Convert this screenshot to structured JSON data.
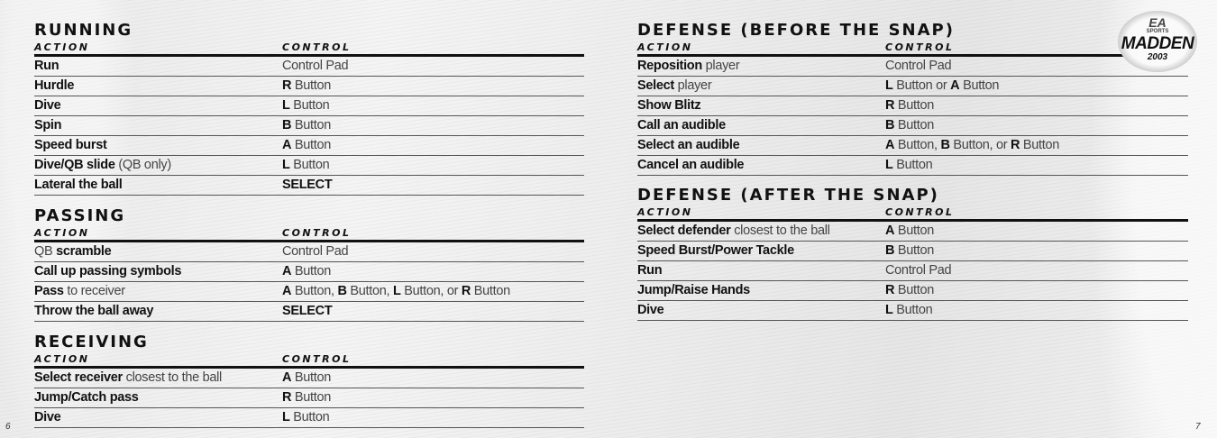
{
  "left_page": {
    "page_number": "6",
    "sections": [
      {
        "title": "RUNNING",
        "header": {
          "action": "ACTION",
          "control": "CONTROL"
        },
        "rows": [
          {
            "action": [
              {
                "t": "Run",
                "b": true
              }
            ],
            "control": [
              {
                "t": "Control Pad",
                "b": false
              }
            ]
          },
          {
            "action": [
              {
                "t": "Hurdle",
                "b": true
              }
            ],
            "control": [
              {
                "t": "R",
                "b": true
              },
              {
                "t": " Button",
                "b": false
              }
            ]
          },
          {
            "action": [
              {
                "t": "Dive",
                "b": true
              }
            ],
            "control": [
              {
                "t": "L",
                "b": true
              },
              {
                "t": " Button",
                "b": false
              }
            ]
          },
          {
            "action": [
              {
                "t": "Spin",
                "b": true
              }
            ],
            "control": [
              {
                "t": "B",
                "b": true
              },
              {
                "t": " Button",
                "b": false
              }
            ]
          },
          {
            "action": [
              {
                "t": "Speed burst",
                "b": true
              }
            ],
            "control": [
              {
                "t": "A",
                "b": true
              },
              {
                "t": " Button",
                "b": false
              }
            ]
          },
          {
            "action": [
              {
                "t": "Dive/QB slide",
                "b": true
              },
              {
                "t": " (QB only)",
                "b": false
              }
            ],
            "control": [
              {
                "t": "L",
                "b": true
              },
              {
                "t": " Button",
                "b": false
              }
            ]
          },
          {
            "action": [
              {
                "t": "Lateral the ball",
                "b": true
              }
            ],
            "control": [
              {
                "t": "SELECT",
                "b": true
              }
            ]
          }
        ]
      },
      {
        "title": "PASSING",
        "header": {
          "action": "ACTION",
          "control": "CONTROL"
        },
        "rows": [
          {
            "action": [
              {
                "t": "QB",
                "b": false
              },
              {
                "t": " scramble",
                "b": true
              }
            ],
            "control": [
              {
                "t": "Control Pad",
                "b": false
              }
            ]
          },
          {
            "action": [
              {
                "t": "Call up passing symbols",
                "b": true
              }
            ],
            "control": [
              {
                "t": "A",
                "b": true
              },
              {
                "t": " Button",
                "b": false
              }
            ]
          },
          {
            "action": [
              {
                "t": "Pass",
                "b": true
              },
              {
                "t": " to receiver",
                "b": false
              }
            ],
            "control": [
              {
                "t": "A",
                "b": true
              },
              {
                "t": " Button, ",
                "b": false
              },
              {
                "t": "B",
                "b": true
              },
              {
                "t": " Button, ",
                "b": false
              },
              {
                "t": "L",
                "b": true
              },
              {
                "t": " Button, or ",
                "b": false
              },
              {
                "t": "R",
                "b": true
              },
              {
                "t": " Button",
                "b": false
              }
            ]
          },
          {
            "action": [
              {
                "t": "Throw the ball away",
                "b": true
              }
            ],
            "control": [
              {
                "t": "SELECT",
                "b": true
              }
            ]
          }
        ]
      },
      {
        "title": "RECEIVING",
        "header": {
          "action": "ACTION",
          "control": "CONTROL"
        },
        "rows": [
          {
            "action": [
              {
                "t": "Select receiver",
                "b": true
              },
              {
                "t": " closest to the ball",
                "b": false
              }
            ],
            "control": [
              {
                "t": "A",
                "b": true
              },
              {
                "t": " Button",
                "b": false
              }
            ]
          },
          {
            "action": [
              {
                "t": "Jump/Catch pass",
                "b": true
              }
            ],
            "control": [
              {
                "t": "R",
                "b": true
              },
              {
                "t": " Button",
                "b": false
              }
            ]
          },
          {
            "action": [
              {
                "t": "Dive",
                "b": true
              }
            ],
            "control": [
              {
                "t": "L",
                "b": true
              },
              {
                "t": " Button",
                "b": false
              }
            ]
          }
        ]
      }
    ]
  },
  "right_page": {
    "page_number": "7",
    "logo": {
      "brand": "EA",
      "sub": "SPORTS",
      "name": "MADDEN",
      "year": "2003"
    },
    "sections": [
      {
        "title": "DEFENSE (BEFORE THE SNAP)",
        "header": {
          "action": "ACTION",
          "control": "CONTROL"
        },
        "rows": [
          {
            "action": [
              {
                "t": "Reposition",
                "b": true
              },
              {
                "t": " player",
                "b": false
              }
            ],
            "control": [
              {
                "t": "Control Pad",
                "b": false
              }
            ]
          },
          {
            "action": [
              {
                "t": "Select",
                "b": true
              },
              {
                "t": " player",
                "b": false
              }
            ],
            "control": [
              {
                "t": "L",
                "b": true
              },
              {
                "t": " Button or ",
                "b": false
              },
              {
                "t": "A",
                "b": true
              },
              {
                "t": " Button",
                "b": false
              }
            ]
          },
          {
            "action": [
              {
                "t": "Show Blitz",
                "b": true
              }
            ],
            "control": [
              {
                "t": "R",
                "b": true
              },
              {
                "t": " Button",
                "b": false
              }
            ]
          },
          {
            "action": [
              {
                "t": "Call an audible",
                "b": true
              }
            ],
            "control": [
              {
                "t": "B",
                "b": true
              },
              {
                "t": " Button",
                "b": false
              }
            ]
          },
          {
            "action": [
              {
                "t": "Select an audible",
                "b": true
              }
            ],
            "control": [
              {
                "t": "A",
                "b": true
              },
              {
                "t": " Button, ",
                "b": false
              },
              {
                "t": "B",
                "b": true
              },
              {
                "t": " Button, or ",
                "b": false
              },
              {
                "t": "R",
                "b": true
              },
              {
                "t": " Button",
                "b": false
              }
            ]
          },
          {
            "action": [
              {
                "t": "Cancel an audible",
                "b": true
              }
            ],
            "control": [
              {
                "t": "L",
                "b": true
              },
              {
                "t": " Button",
                "b": false
              }
            ]
          }
        ]
      },
      {
        "title": "DEFENSE (AFTER THE SNAP)",
        "header": {
          "action": "ACTION",
          "control": "CONTROL"
        },
        "rows": [
          {
            "action": [
              {
                "t": "Select defender",
                "b": true
              },
              {
                "t": " closest to the ball",
                "b": false
              }
            ],
            "control": [
              {
                "t": "A",
                "b": true
              },
              {
                "t": " Button",
                "b": false
              }
            ]
          },
          {
            "action": [
              {
                "t": "Speed Burst/Power Tackle",
                "b": true
              }
            ],
            "control": [
              {
                "t": "B",
                "b": true
              },
              {
                "t": " Button",
                "b": false
              }
            ]
          },
          {
            "action": [
              {
                "t": "Run",
                "b": true
              }
            ],
            "control": [
              {
                "t": "Control Pad",
                "b": false
              }
            ]
          },
          {
            "action": [
              {
                "t": "Jump/Raise Hands",
                "b": true
              }
            ],
            "control": [
              {
                "t": "R",
                "b": true
              },
              {
                "t": " Button",
                "b": false
              }
            ]
          },
          {
            "action": [
              {
                "t": "Dive",
                "b": true
              }
            ],
            "control": [
              {
                "t": "L",
                "b": true
              },
              {
                "t": " Button",
                "b": false
              }
            ]
          }
        ]
      }
    ]
  }
}
